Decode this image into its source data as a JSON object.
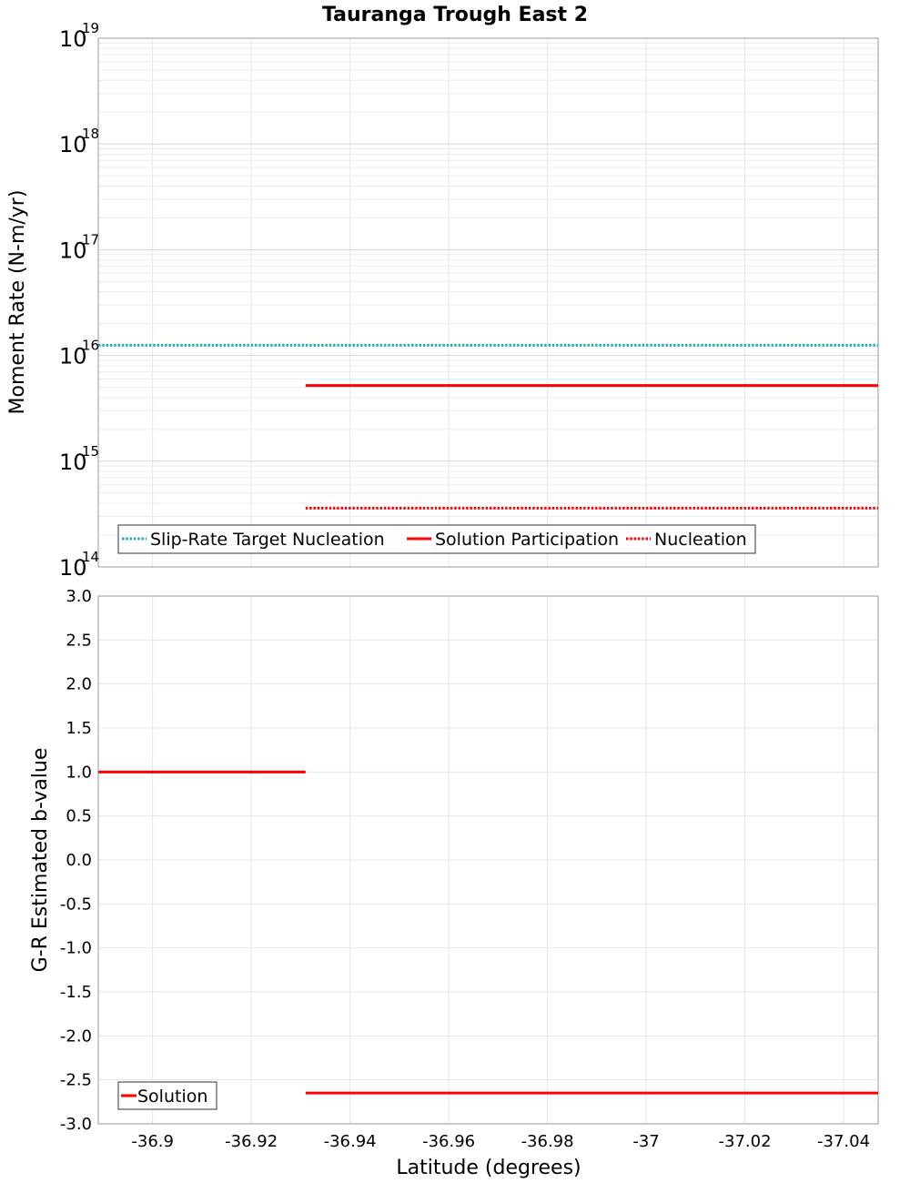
{
  "chart_data": [
    {
      "type": "line",
      "title": "Tauranga Trough East 2",
      "xlabel": "Latitude (degrees)",
      "ylabel": "Moment Rate (N-m/yr)",
      "yscale": "log",
      "ylim": [
        100000000000000.0,
        1e+19
      ],
      "xlim": [
        -36.889,
        -37.047
      ],
      "y_tick_base": "10",
      "y_ticks": [
        {
          "value": 100000000000000.0,
          "exp": "14"
        },
        {
          "value": 1000000000000000.0,
          "exp": "15"
        },
        {
          "value": 1e+16,
          "exp": "16"
        },
        {
          "value": 1e+17,
          "exp": "17"
        },
        {
          "value": 1e+18,
          "exp": "18"
        },
        {
          "value": 1e+19,
          "exp": "19"
        }
      ],
      "grid": true,
      "legend_position": "bottom-left",
      "series": [
        {
          "name": "Slip-Rate Target Nucleation",
          "color": "#20b0b0",
          "style": "dotted",
          "x": [
            -36.889,
            -37.047
          ],
          "values": [
            1.25e+16,
            1.25e+16
          ]
        },
        {
          "name": "Solution Participation",
          "color": "#ff0000",
          "style": "solid",
          "x": [
            -36.931,
            -37.047
          ],
          "values": [
            5200000000000000.0,
            5200000000000000.0
          ]
        },
        {
          "name": "Nucleation",
          "color": "#ff0000",
          "style": "dotted",
          "x": [
            -36.931,
            -37.047
          ],
          "values": [
            360000000000000.0,
            360000000000000.0
          ]
        }
      ]
    },
    {
      "type": "line",
      "title": "",
      "xlabel": "Latitude (degrees)",
      "ylabel": "G-R Estimated b-value",
      "ylim": [
        -3.0,
        3.0
      ],
      "xlim": [
        -36.889,
        -37.047
      ],
      "y_ticks": [
        "-3.0",
        "-2.5",
        "-2.0",
        "-1.5",
        "-1.0",
        "-0.5",
        "0.0",
        "0.5",
        "1.0",
        "1.5",
        "2.0",
        "2.5",
        "3.0"
      ],
      "x_ticks": [
        "-36.9",
        "-36.92",
        "-36.94",
        "-36.96",
        "-36.98",
        "-37",
        "-37.02",
        "-37.04"
      ],
      "grid": true,
      "legend_position": "bottom-left",
      "series": [
        {
          "name": "Solution",
          "color": "#ff0000",
          "style": "solid",
          "segments": [
            {
              "x": [
                -36.889,
                -36.931
              ],
              "values": [
                1.0,
                1.0
              ]
            },
            {
              "x": [
                -36.931,
                -37.047
              ],
              "values": [
                -2.65,
                -2.65
              ]
            }
          ]
        }
      ]
    }
  ]
}
